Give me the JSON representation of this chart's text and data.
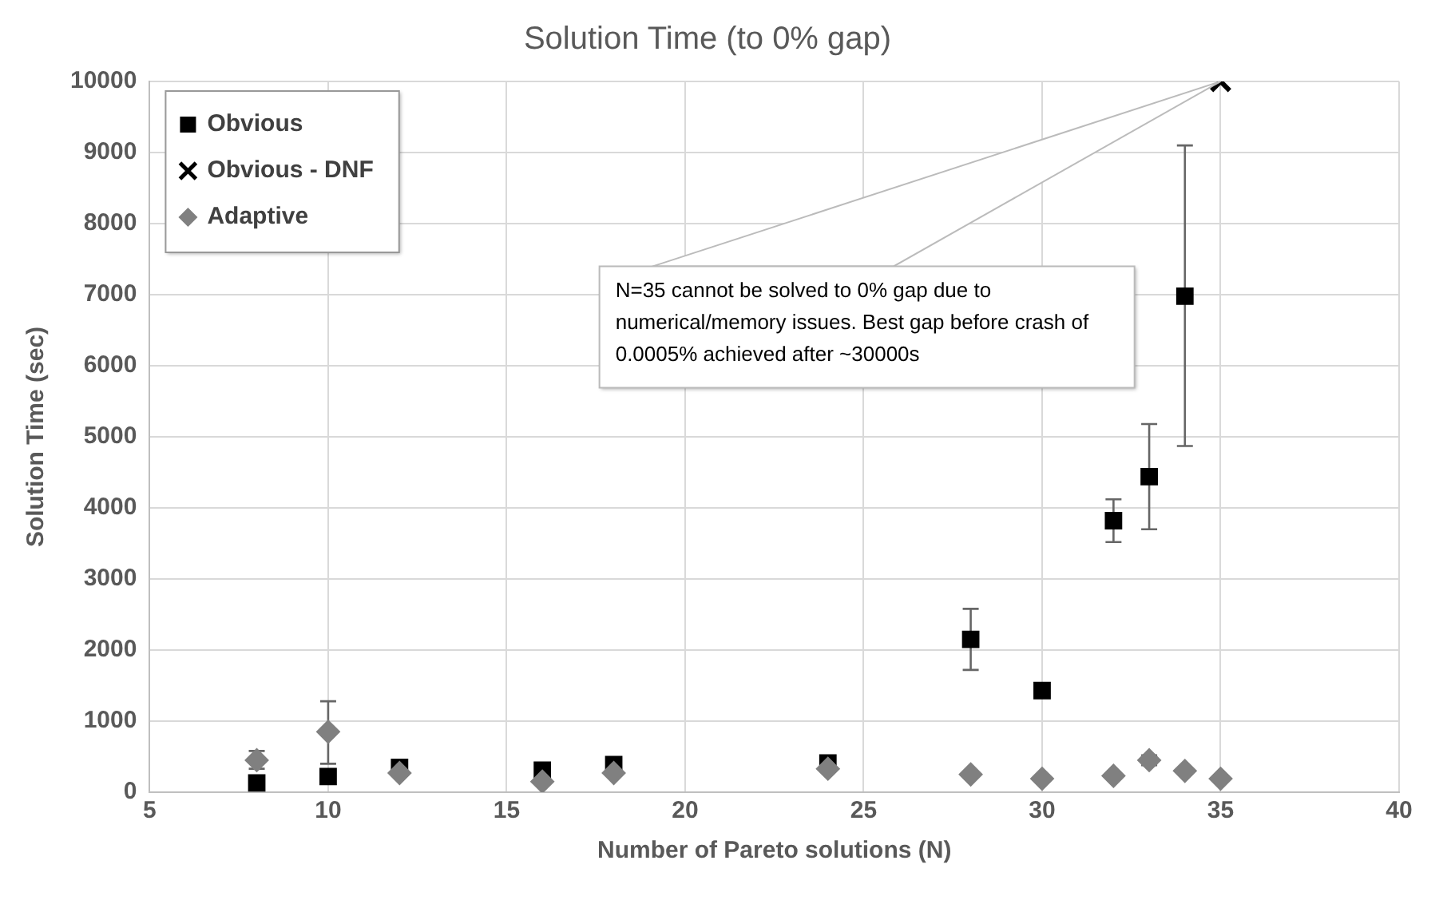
{
  "chart_data": {
    "type": "scatter",
    "title": "Solution Time (to 0% gap)",
    "xlabel": "Number of Pareto solutions (N)",
    "ylabel": "Solution Time (sec)",
    "xlim": [
      5,
      40
    ],
    "xticks": [
      5,
      10,
      15,
      20,
      25,
      30,
      35,
      40
    ],
    "ylim": [
      0,
      10000
    ],
    "yticks": [
      0,
      1000,
      2000,
      3000,
      4000,
      5000,
      6000,
      7000,
      8000,
      9000,
      10000
    ],
    "grid": true,
    "legend": "top left",
    "series": [
      {
        "name": "Obvious",
        "color": "#000000",
        "marker": "square",
        "x": [
          8,
          10,
          12,
          16,
          18,
          24,
          28,
          30,
          32,
          33,
          34
        ],
        "values": [
          130,
          220,
          350,
          310,
          390,
          410,
          2150,
          1430,
          3820,
          4440,
          6980
        ],
        "errors": [
          null,
          null,
          null,
          null,
          null,
          null,
          [
            1720,
            2580
          ],
          null,
          [
            3520,
            4120
          ],
          [
            3700,
            5180
          ],
          [
            4870,
            9100
          ]
        ]
      },
      {
        "name": "Obvious - DNF",
        "color": "#000000",
        "marker": "cross",
        "x": [
          35
        ],
        "values": [
          10000
        ]
      },
      {
        "name": "Adaptive",
        "color": "#808080",
        "marker": "diamond",
        "x": [
          8,
          10,
          12,
          16,
          18,
          24,
          28,
          30,
          32,
          33,
          34,
          35
        ],
        "values": [
          450,
          850,
          270,
          150,
          270,
          330,
          250,
          190,
          230,
          450,
          300,
          190
        ],
        "errors": [
          [
            330,
            580
          ],
          [
            400,
            1280
          ],
          null,
          null,
          null,
          null,
          null,
          null,
          null,
          [
            380,
            520
          ],
          null,
          null
        ]
      }
    ],
    "annotations": [
      {
        "text": "N=35 cannot be solved to 0% gap due to numerical/memory issues. Best gap before crash of 0.0005% achieved after ~30000s",
        "x": 35,
        "y": 10000
      }
    ]
  }
}
